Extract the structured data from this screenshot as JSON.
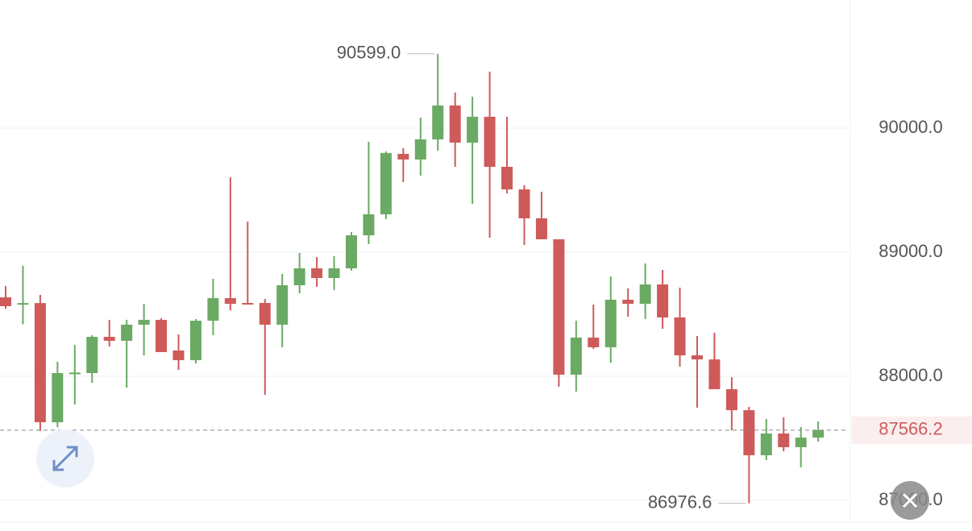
{
  "chart_data": {
    "type": "candlestick",
    "open": [
      88636,
      88580,
      88590,
      87630,
      88020,
      88026,
      88318,
      88286,
      88416,
      88455,
      88208,
      88130,
      88448,
      88630,
      88591,
      88591,
      88416,
      88734,
      88870,
      88792,
      88870,
      89136,
      89305,
      89792,
      89747,
      89909,
      90182,
      89883,
      90091,
      89688,
      89506,
      89273,
      89104,
      88013,
      88312,
      88234,
      88617,
      88584,
      88740,
      88474,
      88169,
      88136,
      87896,
      87727,
      87364,
      87539,
      87429,
      87506
    ],
    "high": [
      88727,
      88890,
      88656,
      88117,
      88253,
      88331,
      88455,
      88455,
      88584,
      88468,
      88338,
      88461,
      88786,
      89604,
      89247,
      88623,
      88825,
      88994,
      88961,
      88968,
      89162,
      89890,
      89812,
      89838,
      90084,
      90599.0,
      90286,
      90253,
      90455,
      90091,
      89539,
      89487,
      89104,
      88448,
      88578,
      88805,
      88708,
      88909,
      88857,
      88714,
      88325,
      88351,
      87993,
      87753,
      87656,
      87669,
      87591,
      87636
    ],
    "low": [
      88545,
      88420,
      87560,
      87590,
      87773,
      87948,
      88240,
      87909,
      88169,
      88195,
      88052,
      88104,
      88331,
      88532,
      88578,
      87851,
      88234,
      88669,
      88721,
      88695,
      88851,
      89065,
      89266,
      89565,
      89617,
      89818,
      89688,
      89390,
      89117,
      89474,
      89058,
      89104,
      87916,
      87877,
      88221,
      88110,
      88481,
      88461,
      88383,
      88078,
      87747,
      87896,
      87565,
      86976.6,
      87325,
      87396,
      87266,
      87474
    ],
    "close": [
      88565,
      88590,
      87630,
      88026,
      88030,
      88318,
      88286,
      88416,
      88455,
      88195,
      88130,
      88448,
      88630,
      88584,
      88578,
      88416,
      88734,
      88870,
      88792,
      88870,
      89136,
      89305,
      89799,
      89747,
      89909,
      90182,
      89883,
      90091,
      89688,
      89506,
      89273,
      89104,
      88013,
      88312,
      88234,
      88617,
      88584,
      88740,
      88474,
      88169,
      88136,
      87896,
      87727,
      87364,
      87539,
      87429,
      87506,
      87566.2
    ],
    "up_color": "#6aaa64",
    "down_color": "#cf5a5a",
    "ylim": [
      86825,
      91032
    ],
    "yticks": [
      {
        "value": 87000,
        "label": "87000.0"
      },
      {
        "value": 88000,
        "label": "88000.0"
      },
      {
        "value": 89000,
        "label": "89000.0"
      },
      {
        "value": 90000,
        "label": "90000.0"
      }
    ],
    "grid": true,
    "annotations": [
      {
        "value": 90599.0,
        "label": "90599.0"
      },
      {
        "value": 86976.6,
        "label": "86976.6"
      }
    ],
    "last_price": {
      "value": 87566.2,
      "label": "87566.2"
    }
  }
}
